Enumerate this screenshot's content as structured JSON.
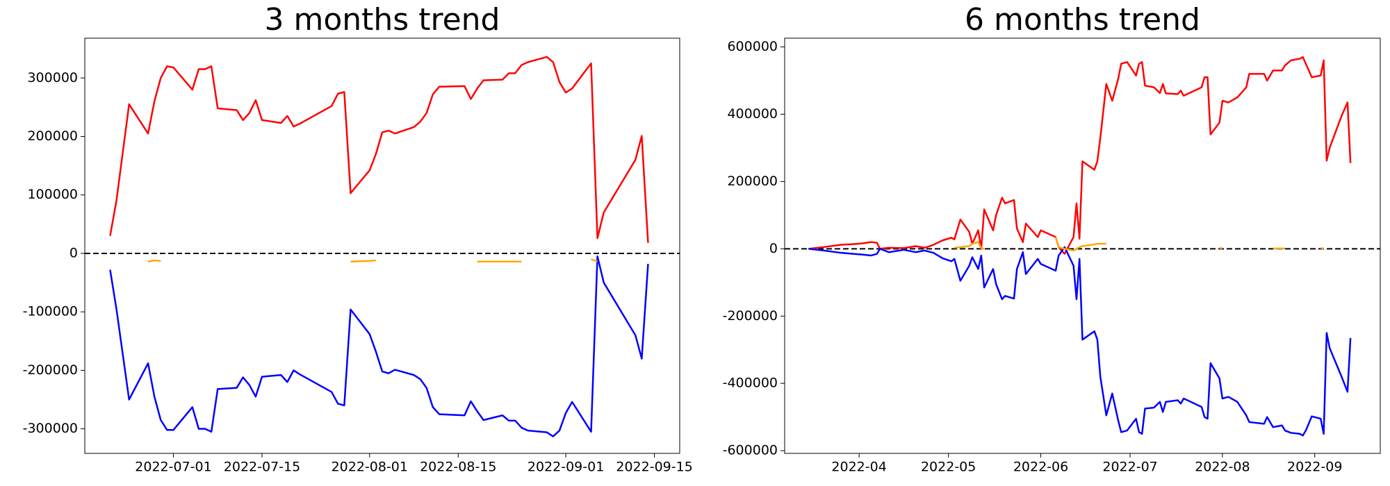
{
  "chart_data": [
    {
      "type": "line",
      "title": "3 months trend",
      "x": [
        "2022-06-21",
        "2022-06-22",
        "2022-06-24",
        "2022-06-27",
        "2022-06-28",
        "2022-06-29",
        "2022-06-30",
        "2022-07-01",
        "2022-07-04",
        "2022-07-05",
        "2022-07-06",
        "2022-07-07",
        "2022-07-08",
        "2022-07-11",
        "2022-07-12",
        "2022-07-13",
        "2022-07-14",
        "2022-07-15",
        "2022-07-18",
        "2022-07-19",
        "2022-07-20",
        "2022-07-21",
        "2022-07-26",
        "2022-07-27",
        "2022-07-28",
        "2022-07-29",
        "2022-08-01",
        "2022-08-02",
        "2022-08-03",
        "2022-08-04",
        "2022-08-05",
        "2022-08-08",
        "2022-08-09",
        "2022-08-10",
        "2022-08-11",
        "2022-08-12",
        "2022-08-16",
        "2022-08-17",
        "2022-08-18",
        "2022-08-19",
        "2022-08-22",
        "2022-08-23",
        "2022-08-24",
        "2022-08-25",
        "2022-08-26",
        "2022-08-29",
        "2022-08-30",
        "2022-08-31",
        "2022-09-01",
        "2022-09-02",
        "2022-09-05",
        "2022-09-06",
        "2022-09-07",
        "2022-09-12",
        "2022-09-13",
        "2022-09-14"
      ],
      "series": [
        {
          "color": "#ff0000",
          "values": [
            30000,
            90000,
            255000,
            205000,
            260000,
            300000,
            320000,
            318000,
            280000,
            315000,
            315000,
            320000,
            248000,
            245000,
            228000,
            240000,
            262000,
            228000,
            223000,
            235000,
            217000,
            222000,
            252000,
            273000,
            276000,
            103000,
            142000,
            170000,
            207000,
            210000,
            205000,
            216000,
            225000,
            240000,
            272000,
            285000,
            286000,
            264000,
            282000,
            296000,
            297000,
            308000,
            308000,
            322000,
            327000,
            336000,
            327000,
            293000,
            275000,
            282000,
            325000,
            26000,
            70000,
            160000,
            201000,
            18000
          ]
        },
        {
          "color": "#0000ff",
          "values": [
            -28000,
            -95000,
            -250000,
            -188000,
            -245000,
            -285000,
            -302000,
            -302000,
            -263000,
            -300000,
            -300000,
            -305000,
            -232000,
            -230000,
            -212000,
            -225000,
            -245000,
            -211000,
            -208000,
            -220000,
            -200000,
            -207000,
            -237000,
            -257000,
            -260000,
            -96000,
            -138000,
            -168000,
            -202000,
            -205000,
            -199000,
            -208000,
            -215000,
            -230000,
            -263000,
            -275000,
            -277000,
            -253000,
            -270000,
            -285000,
            -277000,
            -286000,
            -286000,
            -298000,
            -303000,
            -306000,
            -313000,
            -303000,
            -273000,
            -254000,
            -305000,
            -5000,
            -50000,
            -140000,
            -180000,
            -18000
          ]
        },
        {
          "color": "#ffa500",
          "values": [
            null,
            null,
            null,
            -14000,
            -12000,
            -13000,
            null,
            null,
            null,
            null,
            null,
            null,
            null,
            null,
            null,
            null,
            null,
            null,
            null,
            null,
            null,
            null,
            null,
            null,
            null,
            -14000,
            -13000,
            -12000,
            null,
            null,
            null,
            null,
            null,
            null,
            null,
            null,
            null,
            null,
            -14000,
            -14000,
            -14000,
            -14000,
            -14000,
            -14000,
            null,
            null,
            null,
            null,
            null,
            null,
            -10000,
            -14000,
            null,
            null,
            null,
            null
          ]
        }
      ],
      "hline": 0,
      "xlim": [
        "2022-06-17",
        "2022-09-19"
      ],
      "xticks": [
        "2022-07-01",
        "2022-07-15",
        "2022-08-01",
        "2022-08-15",
        "2022-09-01",
        "2022-09-15"
      ],
      "ylim": [
        -342000,
        368000
      ],
      "yticks": [
        -300000,
        -200000,
        -100000,
        0,
        100000,
        200000,
        300000
      ]
    },
    {
      "type": "line",
      "title": "6 months trend",
      "x": [
        "2022-03-15",
        "2022-03-20",
        "2022-03-26",
        "2022-03-30",
        "2022-04-02",
        "2022-04-05",
        "2022-04-07",
        "2022-04-08",
        "2022-04-11",
        "2022-04-16",
        "2022-04-20",
        "2022-04-23",
        "2022-04-26",
        "2022-04-29",
        "2022-05-02",
        "2022-05-03",
        "2022-05-05",
        "2022-05-08",
        "2022-05-09",
        "2022-05-11",
        "2022-05-12",
        "2022-05-13",
        "2022-05-16",
        "2022-05-17",
        "2022-05-19",
        "2022-05-20",
        "2022-05-23",
        "2022-05-24",
        "2022-05-26",
        "2022-05-27",
        "2022-05-31",
        "2022-06-01",
        "2022-06-06",
        "2022-06-07",
        "2022-06-09",
        "2022-06-12",
        "2022-06-13",
        "2022-06-14",
        "2022-06-15",
        "2022-06-19",
        "2022-06-20",
        "2022-06-21",
        "2022-06-23",
        "2022-06-25",
        "2022-06-27",
        "2022-06-28",
        "2022-06-30",
        "2022-07-03",
        "2022-07-04",
        "2022-07-05",
        "2022-07-06",
        "2022-07-09",
        "2022-07-11",
        "2022-07-12",
        "2022-07-13",
        "2022-07-17",
        "2022-07-18",
        "2022-07-19",
        "2022-07-25",
        "2022-07-26",
        "2022-07-27",
        "2022-07-28",
        "2022-07-31",
        "2022-08-01",
        "2022-08-03",
        "2022-08-06",
        "2022-08-09",
        "2022-08-10",
        "2022-08-15",
        "2022-08-16",
        "2022-08-18",
        "2022-08-21",
        "2022-08-22",
        "2022-08-24",
        "2022-08-27",
        "2022-08-28",
        "2022-08-29",
        "2022-08-31",
        "2022-09-03",
        "2022-09-04",
        "2022-09-05",
        "2022-09-06",
        "2022-09-10",
        "2022-09-12",
        "2022-09-13"
      ],
      "series": [
        {
          "color": "#ff0000",
          "values": [
            0,
            5000,
            12000,
            14000,
            16000,
            20000,
            18000,
            0,
            3000,
            2000,
            8000,
            3000,
            12000,
            25000,
            33000,
            28000,
            87000,
            50000,
            15000,
            55000,
            0,
            117000,
            55000,
            100000,
            152000,
            135000,
            145000,
            60000,
            20000,
            75000,
            35000,
            55000,
            35000,
            5000,
            -15000,
            35000,
            135000,
            30000,
            260000,
            235000,
            260000,
            330000,
            490000,
            440000,
            505000,
            550000,
            555000,
            515000,
            550000,
            555000,
            485000,
            480000,
            463000,
            490000,
            462000,
            460000,
            470000,
            455000,
            480000,
            510000,
            510000,
            340000,
            375000,
            440000,
            435000,
            450000,
            480000,
            520000,
            520000,
            500000,
            530000,
            530000,
            545000,
            560000,
            565000,
            570000,
            550000,
            510000,
            515000,
            560000,
            262000,
            300000,
            395000,
            435000,
            255000
          ]
        },
        {
          "color": "#0000ff",
          "values": [
            0,
            -5000,
            -12000,
            -15000,
            -17000,
            -20000,
            -15000,
            0,
            -10000,
            -3000,
            -10000,
            -5000,
            -12000,
            -28000,
            -37000,
            -30000,
            -95000,
            -50000,
            -25000,
            -60000,
            -20000,
            -115000,
            -60000,
            -105000,
            -150000,
            -140000,
            -148000,
            -60000,
            -10000,
            -75000,
            -30000,
            -45000,
            -65000,
            -20000,
            5000,
            -50000,
            -150000,
            -30000,
            -270000,
            -245000,
            -270000,
            -380000,
            -495000,
            -430000,
            -510000,
            -545000,
            -540000,
            -505000,
            -545000,
            -550000,
            -475000,
            -472000,
            -455000,
            -485000,
            -455000,
            -450000,
            -460000,
            -445000,
            -470000,
            -500000,
            -505000,
            -340000,
            -385000,
            -445000,
            -440000,
            -455000,
            -495000,
            -515000,
            -520000,
            -500000,
            -530000,
            -525000,
            -540000,
            -547000,
            -550000,
            -555000,
            -540000,
            -498000,
            -505000,
            -550000,
            -250000,
            -295000,
            -380000,
            -425000,
            -265000
          ]
        },
        {
          "color": "#ffa500",
          "values": [
            null,
            null,
            null,
            null,
            null,
            null,
            null,
            null,
            null,
            null,
            null,
            null,
            null,
            null,
            null,
            3000,
            5000,
            8000,
            15000,
            20000,
            2000,
            0,
            null,
            null,
            null,
            null,
            null,
            null,
            null,
            null,
            null,
            null,
            35000,
            5000,
            0,
            -5000,
            0,
            5000,
            8000,
            13000,
            15000,
            15000,
            15000,
            null,
            null,
            null,
            null,
            null,
            null,
            null,
            null,
            null,
            null,
            null,
            null,
            null,
            null,
            null,
            null,
            null,
            null,
            null,
            2000,
            2000,
            null,
            null,
            null,
            null,
            null,
            null,
            1000,
            1000,
            1000,
            null,
            null,
            null,
            null,
            null,
            2000,
            1000,
            null,
            null,
            null,
            null,
            null
          ]
        }
      ],
      "hline": 0,
      "xlim": [
        "2022-03-07",
        "2022-09-23"
      ],
      "xticks": [
        "2022-04",
        "2022-05",
        "2022-06",
        "2022-07",
        "2022-08",
        "2022-09"
      ],
      "ylim": [
        -608000,
        626000
      ],
      "yticks": [
        -600000,
        -400000,
        -200000,
        0,
        200000,
        400000,
        600000
      ]
    }
  ]
}
